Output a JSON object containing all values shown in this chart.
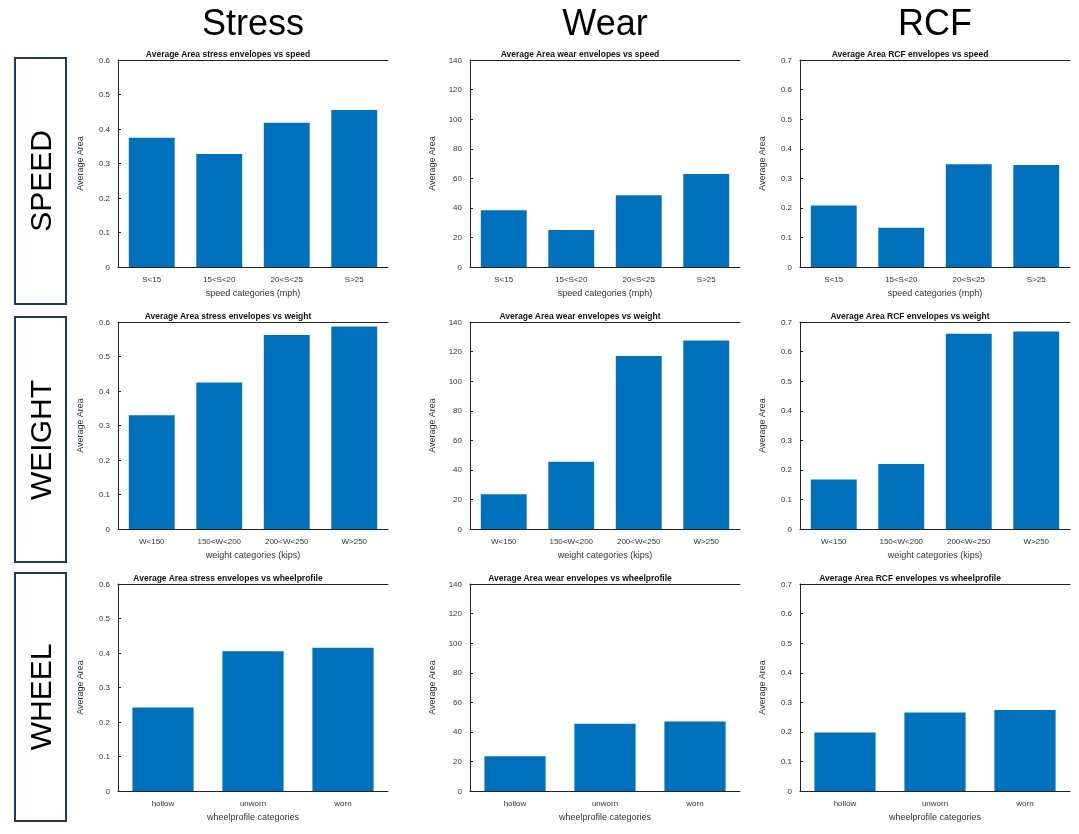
{
  "chart_data": [
    {
      "type": "other",
      "annotations": [
        "Stress",
        "Wear",
        "RCF",
        "SPEED",
        "WEIGHT",
        "WHEEL"
      ]
    },
    {
      "type": "bar",
      "title": "Average Area stress envelopes vs speed",
      "xlabel": "speed categories (mph)",
      "ylabel": "Average Area",
      "categories": [
        "S<15",
        "15<S<20",
        "20<S<25",
        "S>25"
      ],
      "values": [
        0.375,
        0.328,
        0.418,
        0.455
      ],
      "color": "#0072bd",
      "ylim": [
        0,
        0.6
      ],
      "yticks": [
        0,
        0.1,
        0.2,
        0.3,
        0.4,
        0.5,
        0.6
      ]
    },
    {
      "type": "bar",
      "title": "Average Area wear envelopes vs speed",
      "xlabel": "speed categories (mph)",
      "ylabel": "Average Area",
      "categories": [
        "S<15",
        "15<S<20",
        "20<S<25",
        "S>25"
      ],
      "values": [
        38.5,
        25,
        48.5,
        63
      ],
      "color": "#0072bd",
      "ylim": [
        0,
        140
      ],
      "yticks": [
        0,
        20,
        40,
        60,
        80,
        100,
        120,
        140
      ]
    },
    {
      "type": "bar",
      "title": "Average Area RCF envelopes vs speed",
      "xlabel": "speed categories (mph)",
      "ylabel": "Average Area",
      "categories": [
        "S<15",
        "15<S<20",
        "20<S<25",
        "S>25"
      ],
      "values": [
        0.208,
        0.133,
        0.348,
        0.345
      ],
      "color": "#0072bd",
      "ylim": [
        0,
        0.7
      ],
      "yticks": [
        0,
        0.1,
        0.2,
        0.3,
        0.4,
        0.5,
        0.6,
        0.7
      ]
    },
    {
      "type": "bar",
      "title": "Average Area stress envelopes vs weight",
      "xlabel": "weight categories (kips)",
      "ylabel": "Average Area",
      "categories": [
        "W<150",
        "150<W<200",
        "200<W<250",
        "W>250"
      ],
      "values": [
        0.33,
        0.425,
        0.562,
        0.587
      ],
      "color": "#0072bd",
      "ylim": [
        0,
        0.6
      ],
      "yticks": [
        0,
        0.1,
        0.2,
        0.3,
        0.4,
        0.5,
        0.6
      ]
    },
    {
      "type": "bar",
      "title": "Average Area wear envelopes vs weight",
      "xlabel": "weight categories (kips)",
      "ylabel": "Average Area",
      "categories": [
        "W<150",
        "150<W<200",
        "200<W<250",
        "W>250"
      ],
      "values": [
        23.5,
        45.5,
        117,
        127.5
      ],
      "color": "#0072bd",
      "ylim": [
        0,
        140
      ],
      "yticks": [
        0,
        20,
        40,
        60,
        80,
        100,
        120,
        140
      ]
    },
    {
      "type": "bar",
      "title": "Average Area RCF envelopes vs weight",
      "xlabel": "weight categories (kips)",
      "ylabel": "Average Area",
      "categories": [
        "W<150",
        "150<W<200",
        "200<W<250",
        "W>250"
      ],
      "values": [
        0.168,
        0.22,
        0.66,
        0.668
      ],
      "color": "#0072bd",
      "ylim": [
        0,
        0.7
      ],
      "yticks": [
        0,
        0.1,
        0.2,
        0.3,
        0.4,
        0.5,
        0.6,
        0.7
      ]
    },
    {
      "type": "bar",
      "title": "Average Area stress envelopes vs wheelprofile",
      "xlabel": "wheelprofile categories",
      "ylabel": "Average Area",
      "categories": [
        "hollow",
        "unworn",
        "worn"
      ],
      "values": [
        0.242,
        0.405,
        0.415
      ],
      "color": "#0072bd",
      "ylim": [
        0,
        0.6
      ],
      "yticks": [
        0,
        0.1,
        0.2,
        0.3,
        0.4,
        0.5,
        0.6
      ]
    },
    {
      "type": "bar",
      "title": "Average Area wear envelopes vs wheelprofile",
      "xlabel": "wheelprofile categories",
      "ylabel": "Average Area",
      "categories": [
        "hollow",
        "unworn",
        "worn"
      ],
      "values": [
        23.5,
        45.5,
        47
      ],
      "color": "#0072bd",
      "ylim": [
        0,
        140
      ],
      "yticks": [
        0,
        20,
        40,
        60,
        80,
        100,
        120,
        140
      ]
    },
    {
      "type": "bar",
      "title": "Average Area RCF envelopes vs wheelprofile",
      "xlabel": "wheelprofile categories",
      "ylabel": "Average Area",
      "categories": [
        "hollow",
        "unworn",
        "worn"
      ],
      "values": [
        0.198,
        0.266,
        0.274
      ],
      "color": "#0072bd",
      "ylim": [
        0,
        0.7
      ],
      "yticks": [
        0,
        0.1,
        0.2,
        0.3,
        0.4,
        0.5,
        0.6,
        0.7
      ]
    }
  ]
}
